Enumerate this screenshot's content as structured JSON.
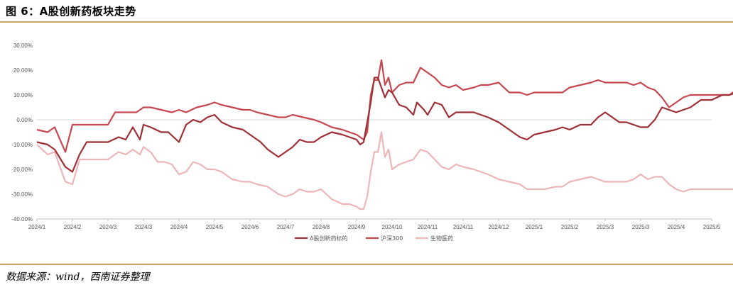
{
  "header": {
    "title": "图 6：A股创新药板块走势"
  },
  "footer": {
    "source": "数据来源：wind，西南证券整理"
  },
  "chart_data": {
    "type": "line",
    "title": "",
    "xlabel": "",
    "ylabel": "",
    "ylim": [
      -40,
      30
    ],
    "y_ticks": [
      "30.00%",
      "20.00%",
      "10.00%",
      "0.00%",
      "-10.00%",
      "-20.00%",
      "-30.00%",
      "-40.00%"
    ],
    "y_tick_values": [
      30,
      20,
      10,
      0,
      -10,
      -20,
      -30,
      -40
    ],
    "x_ticks": [
      "2024/1",
      "2024/2",
      "2024/3",
      "2024/3",
      "2024/4",
      "2024/5",
      "2024/6",
      "2024/7",
      "2024/8",
      "2024/9",
      "2024/10",
      "2024/11",
      "2024/11",
      "2024/12",
      "2025/1",
      "2025/2",
      "2025/3",
      "2025/3",
      "2025/4",
      "2025/5"
    ],
    "grid": "horizontal-zero-line",
    "legend_position": "bottom",
    "series": [
      {
        "name": "A股创新药标的",
        "color": "#9e2f35",
        "points": [
          [
            0,
            -9
          ],
          [
            0.3,
            -10
          ],
          [
            0.5,
            -12
          ],
          [
            0.8,
            -19
          ],
          [
            1.0,
            -21
          ],
          [
            1.2,
            -14
          ],
          [
            1.4,
            -9
          ],
          [
            2.0,
            -9
          ],
          [
            2.3,
            -7
          ],
          [
            2.5,
            -8
          ],
          [
            2.7,
            -3
          ],
          [
            2.9,
            -8
          ],
          [
            3.0,
            -2
          ],
          [
            3.2,
            -3
          ],
          [
            3.5,
            -5
          ],
          [
            3.7,
            -5
          ],
          [
            4.0,
            -9
          ],
          [
            4.2,
            -2
          ],
          [
            4.4,
            0
          ],
          [
            4.6,
            -1
          ],
          [
            4.8,
            1
          ],
          [
            5.0,
            2
          ],
          [
            5.2,
            -1
          ],
          [
            5.5,
            -3
          ],
          [
            5.8,
            -4
          ],
          [
            6.0,
            -6
          ],
          [
            6.3,
            -9
          ],
          [
            6.5,
            -12
          ],
          [
            6.8,
            -15
          ],
          [
            7.0,
            -13
          ],
          [
            7.2,
            -11
          ],
          [
            7.4,
            -8
          ],
          [
            7.6,
            -9
          ],
          [
            7.8,
            -9
          ],
          [
            8.0,
            -7
          ],
          [
            8.3,
            -5
          ],
          [
            8.6,
            -6
          ],
          [
            8.8,
            -7
          ],
          [
            9.0,
            -8
          ],
          [
            9.1,
            -10
          ],
          [
            9.2,
            -9
          ],
          [
            9.4,
            7
          ],
          [
            9.5,
            17
          ],
          [
            9.6,
            17
          ],
          [
            9.8,
            9
          ],
          [
            9.9,
            12
          ],
          [
            10.0,
            11
          ],
          [
            10.2,
            6
          ],
          [
            10.4,
            5
          ],
          [
            10.6,
            2
          ],
          [
            10.7,
            7
          ],
          [
            10.9,
            4
          ],
          [
            11.0,
            2
          ],
          [
            11.2,
            7
          ],
          [
            11.4,
            6
          ],
          [
            11.6,
            1
          ],
          [
            11.8,
            3
          ],
          [
            12.0,
            3
          ],
          [
            12.3,
            3
          ],
          [
            12.5,
            2
          ],
          [
            12.7,
            1
          ],
          [
            13.0,
            -1
          ],
          [
            13.3,
            -4
          ],
          [
            13.6,
            -7
          ],
          [
            13.8,
            -8
          ],
          [
            14.0,
            -6
          ],
          [
            14.3,
            -5
          ],
          [
            14.6,
            -4
          ],
          [
            14.8,
            -3
          ],
          [
            15.0,
            -4
          ],
          [
            15.3,
            -2
          ],
          [
            15.6,
            -2
          ],
          [
            15.8,
            1
          ],
          [
            16.0,
            3
          ],
          [
            16.2,
            1
          ],
          [
            16.4,
            -1
          ],
          [
            16.6,
            -1
          ],
          [
            16.8,
            -2
          ],
          [
            17.0,
            -3
          ],
          [
            17.2,
            -3
          ],
          [
            17.4,
            0
          ],
          [
            17.6,
            5
          ],
          [
            17.8,
            4
          ],
          [
            18.0,
            3
          ],
          [
            18.2,
            4
          ],
          [
            18.4,
            5
          ],
          [
            18.7,
            8
          ],
          [
            19.0,
            8
          ],
          [
            19.3,
            10
          ],
          [
            19.5,
            10
          ],
          [
            19.7,
            11
          ],
          [
            19.8,
            8
          ],
          [
            19.9,
            12
          ],
          [
            20,
            13
          ]
        ]
      },
      {
        "name": "沪深300",
        "color": "#c7474f",
        "points": [
          [
            0,
            -4
          ],
          [
            0.3,
            -5
          ],
          [
            0.5,
            -3
          ],
          [
            0.8,
            -13
          ],
          [
            1.0,
            -2
          ],
          [
            1.2,
            -2
          ],
          [
            1.5,
            -2
          ],
          [
            1.8,
            -2
          ],
          [
            2.0,
            -2
          ],
          [
            2.2,
            3
          ],
          [
            2.5,
            3
          ],
          [
            2.8,
            3
          ],
          [
            3.0,
            5
          ],
          [
            3.2,
            5
          ],
          [
            3.5,
            4
          ],
          [
            3.8,
            3
          ],
          [
            4.0,
            4
          ],
          [
            4.2,
            3
          ],
          [
            4.5,
            5
          ],
          [
            4.8,
            6
          ],
          [
            5.0,
            7
          ],
          [
            5.2,
            6
          ],
          [
            5.5,
            5
          ],
          [
            5.8,
            4
          ],
          [
            6.0,
            4
          ],
          [
            6.2,
            3
          ],
          [
            6.5,
            2
          ],
          [
            6.8,
            1
          ],
          [
            7.0,
            1
          ],
          [
            7.2,
            2
          ],
          [
            7.5,
            1
          ],
          [
            7.8,
            0
          ],
          [
            8.0,
            -1
          ],
          [
            8.3,
            -3
          ],
          [
            8.6,
            -4
          ],
          [
            8.8,
            -5
          ],
          [
            9.0,
            -6
          ],
          [
            9.1,
            -7
          ],
          [
            9.2,
            -8
          ],
          [
            9.3,
            -5
          ],
          [
            9.4,
            10
          ],
          [
            9.5,
            16
          ],
          [
            9.6,
            16
          ],
          [
            9.7,
            24
          ],
          [
            9.8,
            14
          ],
          [
            9.9,
            17
          ],
          [
            10.0,
            11
          ],
          [
            10.2,
            14
          ],
          [
            10.4,
            15
          ],
          [
            10.6,
            15
          ],
          [
            10.8,
            21
          ],
          [
            11.0,
            19
          ],
          [
            11.2,
            17
          ],
          [
            11.4,
            14
          ],
          [
            11.6,
            13
          ],
          [
            11.8,
            14
          ],
          [
            12.0,
            12
          ],
          [
            12.3,
            13
          ],
          [
            12.5,
            14
          ],
          [
            12.7,
            14
          ],
          [
            13.0,
            15
          ],
          [
            13.3,
            11
          ],
          [
            13.6,
            11
          ],
          [
            13.8,
            10
          ],
          [
            14.0,
            11
          ],
          [
            14.3,
            11
          ],
          [
            14.6,
            11
          ],
          [
            14.8,
            11
          ],
          [
            15.0,
            13
          ],
          [
            15.3,
            14
          ],
          [
            15.6,
            15
          ],
          [
            15.8,
            16
          ],
          [
            16.0,
            15
          ],
          [
            16.3,
            15
          ],
          [
            16.6,
            15
          ],
          [
            16.8,
            14
          ],
          [
            17.0,
            15
          ],
          [
            17.2,
            13
          ],
          [
            17.4,
            12
          ],
          [
            17.6,
            9
          ],
          [
            17.8,
            5
          ],
          [
            18.0,
            7
          ],
          [
            18.2,
            9
          ],
          [
            18.4,
            10
          ],
          [
            18.7,
            10
          ],
          [
            19.0,
            10
          ],
          [
            19.3,
            10
          ],
          [
            19.5,
            10
          ],
          [
            19.7,
            12
          ],
          [
            19.85,
            15
          ],
          [
            20,
            13
          ]
        ]
      },
      {
        "name": "生物医药",
        "color": "#ecb5b8",
        "points": [
          [
            0,
            -10
          ],
          [
            0.3,
            -14
          ],
          [
            0.5,
            -13
          ],
          [
            0.8,
            -25
          ],
          [
            1.0,
            -26
          ],
          [
            1.2,
            -16
          ],
          [
            1.5,
            -16
          ],
          [
            1.8,
            -16
          ],
          [
            2.0,
            -16
          ],
          [
            2.3,
            -13
          ],
          [
            2.5,
            -14
          ],
          [
            2.7,
            -12
          ],
          [
            2.9,
            -14
          ],
          [
            3.0,
            -11
          ],
          [
            3.2,
            -13
          ],
          [
            3.4,
            -17
          ],
          [
            3.6,
            -17
          ],
          [
            3.8,
            -18
          ],
          [
            4.0,
            -22
          ],
          [
            4.2,
            -21
          ],
          [
            4.4,
            -17
          ],
          [
            4.6,
            -18
          ],
          [
            4.8,
            -20
          ],
          [
            5.0,
            -20
          ],
          [
            5.2,
            -21
          ],
          [
            5.5,
            -24
          ],
          [
            5.8,
            -25
          ],
          [
            6.0,
            -25
          ],
          [
            6.2,
            -26
          ],
          [
            6.5,
            -27
          ],
          [
            6.8,
            -30
          ],
          [
            7.0,
            -31
          ],
          [
            7.2,
            -30
          ],
          [
            7.4,
            -28
          ],
          [
            7.6,
            -29
          ],
          [
            7.8,
            -29
          ],
          [
            8.0,
            -28
          ],
          [
            8.3,
            -32
          ],
          [
            8.6,
            -34
          ],
          [
            8.8,
            -34
          ],
          [
            9.0,
            -35
          ],
          [
            9.1,
            -36
          ],
          [
            9.2,
            -36
          ],
          [
            9.3,
            -31
          ],
          [
            9.4,
            -21
          ],
          [
            9.5,
            -13
          ],
          [
            9.6,
            -13
          ],
          [
            9.7,
            -5
          ],
          [
            9.8,
            -15
          ],
          [
            9.9,
            -12
          ],
          [
            10.0,
            -20
          ],
          [
            10.2,
            -18
          ],
          [
            10.4,
            -17
          ],
          [
            10.6,
            -16
          ],
          [
            10.8,
            -12
          ],
          [
            11.0,
            -13
          ],
          [
            11.2,
            -16
          ],
          [
            11.4,
            -19
          ],
          [
            11.6,
            -20
          ],
          [
            11.8,
            -18
          ],
          [
            12.0,
            -19
          ],
          [
            12.3,
            -20
          ],
          [
            12.5,
            -21
          ],
          [
            12.7,
            -22
          ],
          [
            13.0,
            -24
          ],
          [
            13.3,
            -25
          ],
          [
            13.6,
            -26
          ],
          [
            13.8,
            -28
          ],
          [
            14.0,
            -28
          ],
          [
            14.3,
            -28
          ],
          [
            14.6,
            -27
          ],
          [
            14.8,
            -27
          ],
          [
            15.0,
            -25
          ],
          [
            15.3,
            -24
          ],
          [
            15.6,
            -23
          ],
          [
            15.8,
            -24
          ],
          [
            16.0,
            -25
          ],
          [
            16.3,
            -25
          ],
          [
            16.6,
            -25
          ],
          [
            16.8,
            -24
          ],
          [
            17.0,
            -22
          ],
          [
            17.2,
            -24
          ],
          [
            17.4,
            -23
          ],
          [
            17.6,
            -23
          ],
          [
            17.8,
            -26
          ],
          [
            18.0,
            -28
          ],
          [
            18.2,
            -29
          ],
          [
            18.4,
            -28
          ],
          [
            18.7,
            -28
          ],
          [
            19.0,
            -28
          ],
          [
            19.3,
            -28
          ],
          [
            19.5,
            -28
          ],
          [
            19.7,
            -28
          ],
          [
            19.85,
            -27
          ],
          [
            20,
            -27
          ]
        ]
      }
    ]
  }
}
